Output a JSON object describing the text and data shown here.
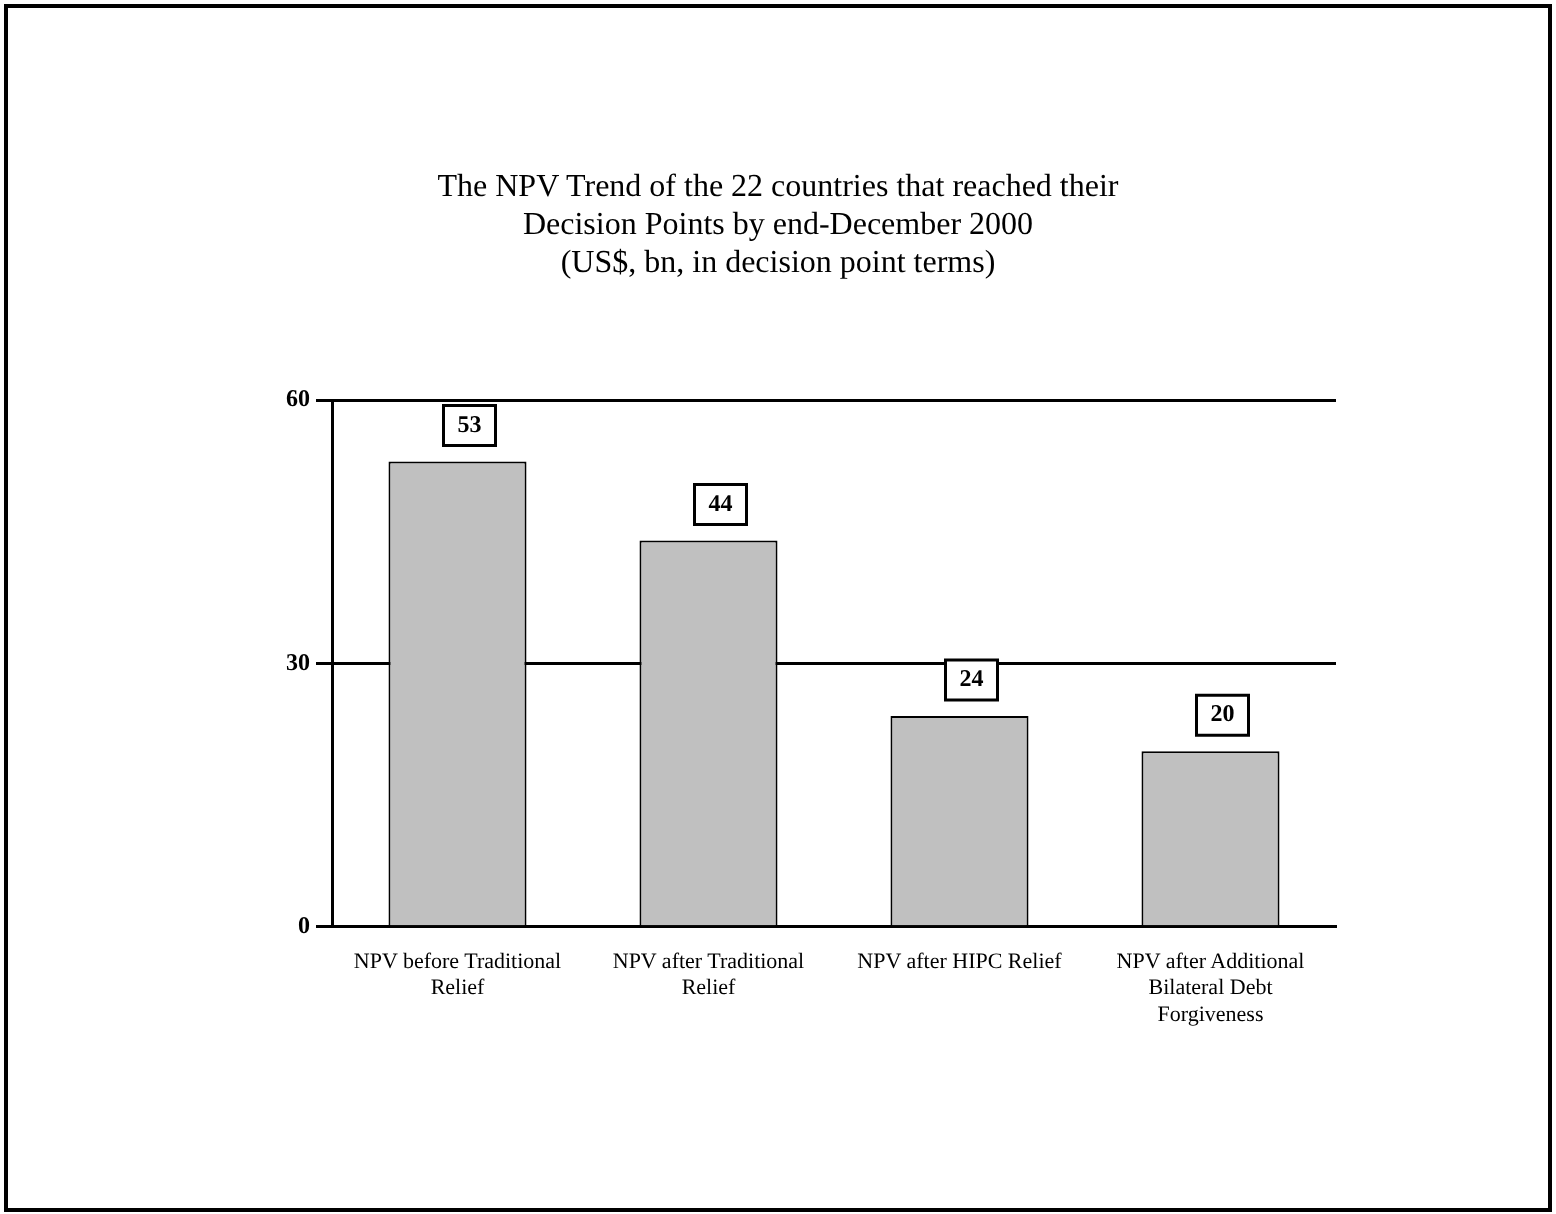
{
  "chart_data": {
    "type": "bar",
    "title": "The NPV Trend of the 22 countries that reached their Decision Points by end-December 2000",
    "subtitle": "(US$, bn, in decision point terms)",
    "categories": [
      "NPV before Traditional Relief",
      "NPV after Traditional Relief",
      "NPV after HIPC Relief",
      "NPV after Additional Bilateral Debt Forgiveness"
    ],
    "values": [
      53,
      44,
      24,
      20
    ],
    "color": "#c0c0c0",
    "ylim": [
      0,
      60
    ],
    "yticks": [
      0,
      30,
      60
    ],
    "grid": "y",
    "data_labels": true,
    "legend": false
  }
}
